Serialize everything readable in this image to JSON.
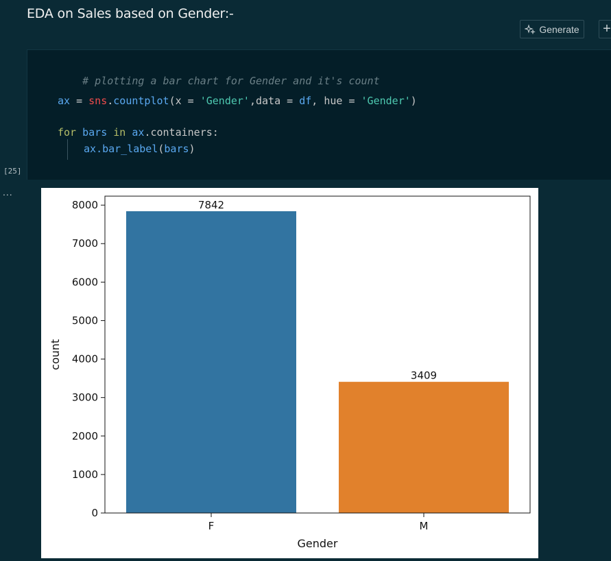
{
  "markdown": {
    "heading": "EDA on Sales based on Gender:-"
  },
  "toolbar": {
    "generate_label": "Generate",
    "generate_icon": "sparkle-icon",
    "add_icon": "plus-icon"
  },
  "cell": {
    "execution_count": "[25]",
    "output_prompt": "...",
    "code": {
      "comment": "# plotting a bar chart for Gender and it's count",
      "line2": {
        "ax": "ax",
        "eq": " = ",
        "sns": "sns",
        "dot": ".",
        "fn": "countplot",
        "open": "(",
        "x": "x",
        "eq2": " = ",
        "s1": "'Gender'",
        "comma": ",",
        "data": "data",
        "eq3": " = ",
        "df": "df",
        "comma2": ", ",
        "hue": "hue",
        "eq4": " = ",
        "s2": "'Gender'",
        "close": ")"
      },
      "line3": {
        "for": "for",
        "bars": "bars",
        "in": "in",
        "ax": "ax",
        "rest": ".containers:"
      },
      "line4": {
        "ax": "ax",
        "fn": ".bar_label",
        "open": "(",
        "arg": "bars",
        "close": ")"
      }
    }
  },
  "chart_data": {
    "type": "bar",
    "categories": [
      "F",
      "M"
    ],
    "values": [
      7842,
      3409
    ],
    "data_labels": [
      "7842",
      "3409"
    ],
    "colors": [
      "#3274a1",
      "#e1812c"
    ],
    "xlabel": "Gender",
    "ylabel": "count",
    "ylim": [
      0,
      8234
    ],
    "yticks": [
      0,
      1000,
      2000,
      3000,
      4000,
      5000,
      6000,
      7000,
      8000
    ],
    "ytick_labels": [
      "0",
      "1000",
      "2000",
      "3000",
      "4000",
      "5000",
      "6000",
      "7000",
      "8000"
    ],
    "grid": false,
    "legend": false
  }
}
